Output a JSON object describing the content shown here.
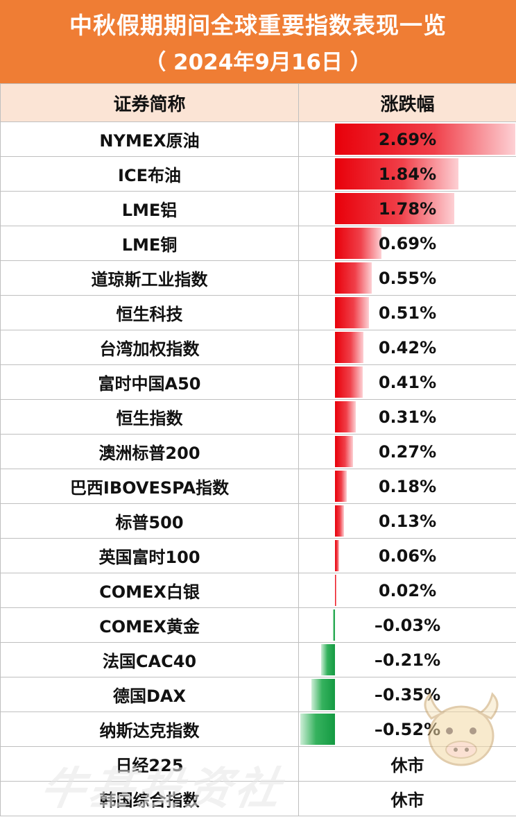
{
  "header": {
    "title": "中秋假期期间全球重要指数表现一览",
    "subtitle": "（ 2024年9月16日 ）"
  },
  "colors": {
    "header_bg": "#ef7d34",
    "table_head_bg": "#fbe4d5",
    "up_bar": "#e8000a",
    "down_bar": "#149a42"
  },
  "table": {
    "columns": [
      "证券简称",
      "涨跌幅"
    ],
    "rows": [
      {
        "name": "NYMEX原油",
        "change": "2.69%",
        "value": 2.69
      },
      {
        "name": "ICE布油",
        "change": "1.84%",
        "value": 1.84
      },
      {
        "name": "LME铝",
        "change": "1.78%",
        "value": 1.78
      },
      {
        "name": "LME铜",
        "change": "0.69%",
        "value": 0.69
      },
      {
        "name": "道琼斯工业指数",
        "change": "0.55%",
        "value": 0.55
      },
      {
        "name": "恒生科技",
        "change": "0.51%",
        "value": 0.51
      },
      {
        "name": "台湾加权指数",
        "change": "0.42%",
        "value": 0.42
      },
      {
        "name": "富时中国A50",
        "change": "0.41%",
        "value": 0.41
      },
      {
        "name": "恒生指数",
        "change": "0.31%",
        "value": 0.31
      },
      {
        "name": "澳洲标普200",
        "change": "0.27%",
        "value": 0.27
      },
      {
        "name": "巴西IBOVESPA指数",
        "change": "0.18%",
        "value": 0.18
      },
      {
        "name": "标普500",
        "change": "0.13%",
        "value": 0.13
      },
      {
        "name": "英国富时100",
        "change": "0.06%",
        "value": 0.06
      },
      {
        "name": "COMEX白银",
        "change": "0.02%",
        "value": 0.02
      },
      {
        "name": "COMEX黄金",
        "change": "–0.03%",
        "value": -0.03
      },
      {
        "name": "法国CAC40",
        "change": "–0.21%",
        "value": -0.21
      },
      {
        "name": "德国DAX",
        "change": "–0.35%",
        "value": -0.35
      },
      {
        "name": "纳斯达克指数",
        "change": "–0.52%",
        "value": -0.52
      },
      {
        "name": "日经225",
        "change": "休市",
        "value": null
      },
      {
        "name": "韩国综合指数",
        "change": "休市",
        "value": null
      }
    ]
  },
  "watermark": {
    "text": "牛基投资社",
    "logo_icon": "bull-mascot-icon"
  }
}
